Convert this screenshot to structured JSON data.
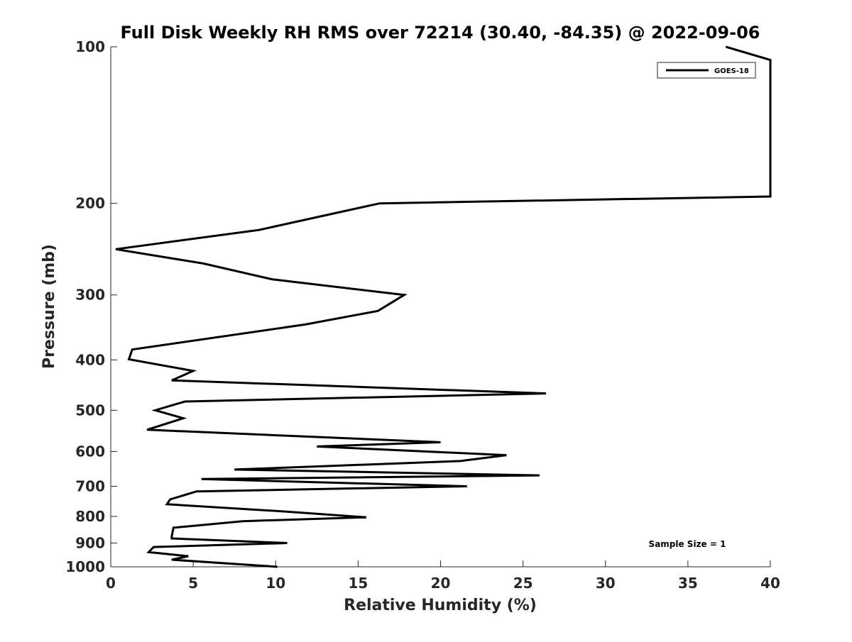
{
  "chart_data": {
    "type": "line",
    "title": "Full Disk Weekly RH RMS over 72214 (30.40, -84.35) @ 2022-09-06",
    "xlabel": "Relative Humidity (%)",
    "ylabel": "Pressure (mb)",
    "xlim": [
      0,
      40
    ],
    "ylim": [
      100,
      1000
    ],
    "y_scale": "log",
    "y_inverted": true,
    "grid": false,
    "xticks": [
      0,
      5,
      10,
      15,
      20,
      25,
      30,
      35,
      40
    ],
    "xtick_labels": [
      "0",
      "5",
      "10",
      "15",
      "20",
      "25",
      "30",
      "35",
      "40"
    ],
    "yticks": [
      100,
      200,
      300,
      400,
      500,
      600,
      700,
      800,
      900,
      1000
    ],
    "ytick_labels": [
      "100",
      "200",
      "300",
      "400",
      "500",
      "600",
      "700",
      "800",
      "900",
      "1000"
    ],
    "legend": {
      "position": "top-right",
      "entries": [
        "GOES-18"
      ]
    },
    "annotation": "Sample Size = 1",
    "series": [
      {
        "name": "GOES-18",
        "color": "#000000",
        "x": [
          37.3,
          40,
          40,
          16.3,
          9.0,
          0.3,
          5.6,
          9.8,
          17.8,
          16.2,
          11.8,
          1.3,
          1.1,
          5.0,
          3.7,
          26.4,
          4.5,
          2.7,
          4.4,
          2.2,
          20.0,
          12.5,
          24.0,
          21.2,
          7.5,
          26.0,
          5.5,
          21.6,
          5.2,
          3.6,
          3.4,
          10.6,
          15.5,
          8.0,
          3.8,
          3.7,
          3.7,
          10.7,
          2.6,
          2.3,
          4.7,
          3.7,
          10.1
        ],
        "y": [
          100,
          106,
          194,
          200,
          225,
          245,
          261,
          280,
          300,
          322,
          342,
          382,
          399,
          420,
          438,
          464,
          481,
          500,
          518,
          545,
          576,
          587,
          610,
          626,
          650,
          667,
          678,
          700,
          716,
          742,
          758,
          783,
          803,
          817,
          841,
          874,
          882,
          900,
          916,
          937,
          954,
          969,
          1000
        ]
      }
    ]
  }
}
